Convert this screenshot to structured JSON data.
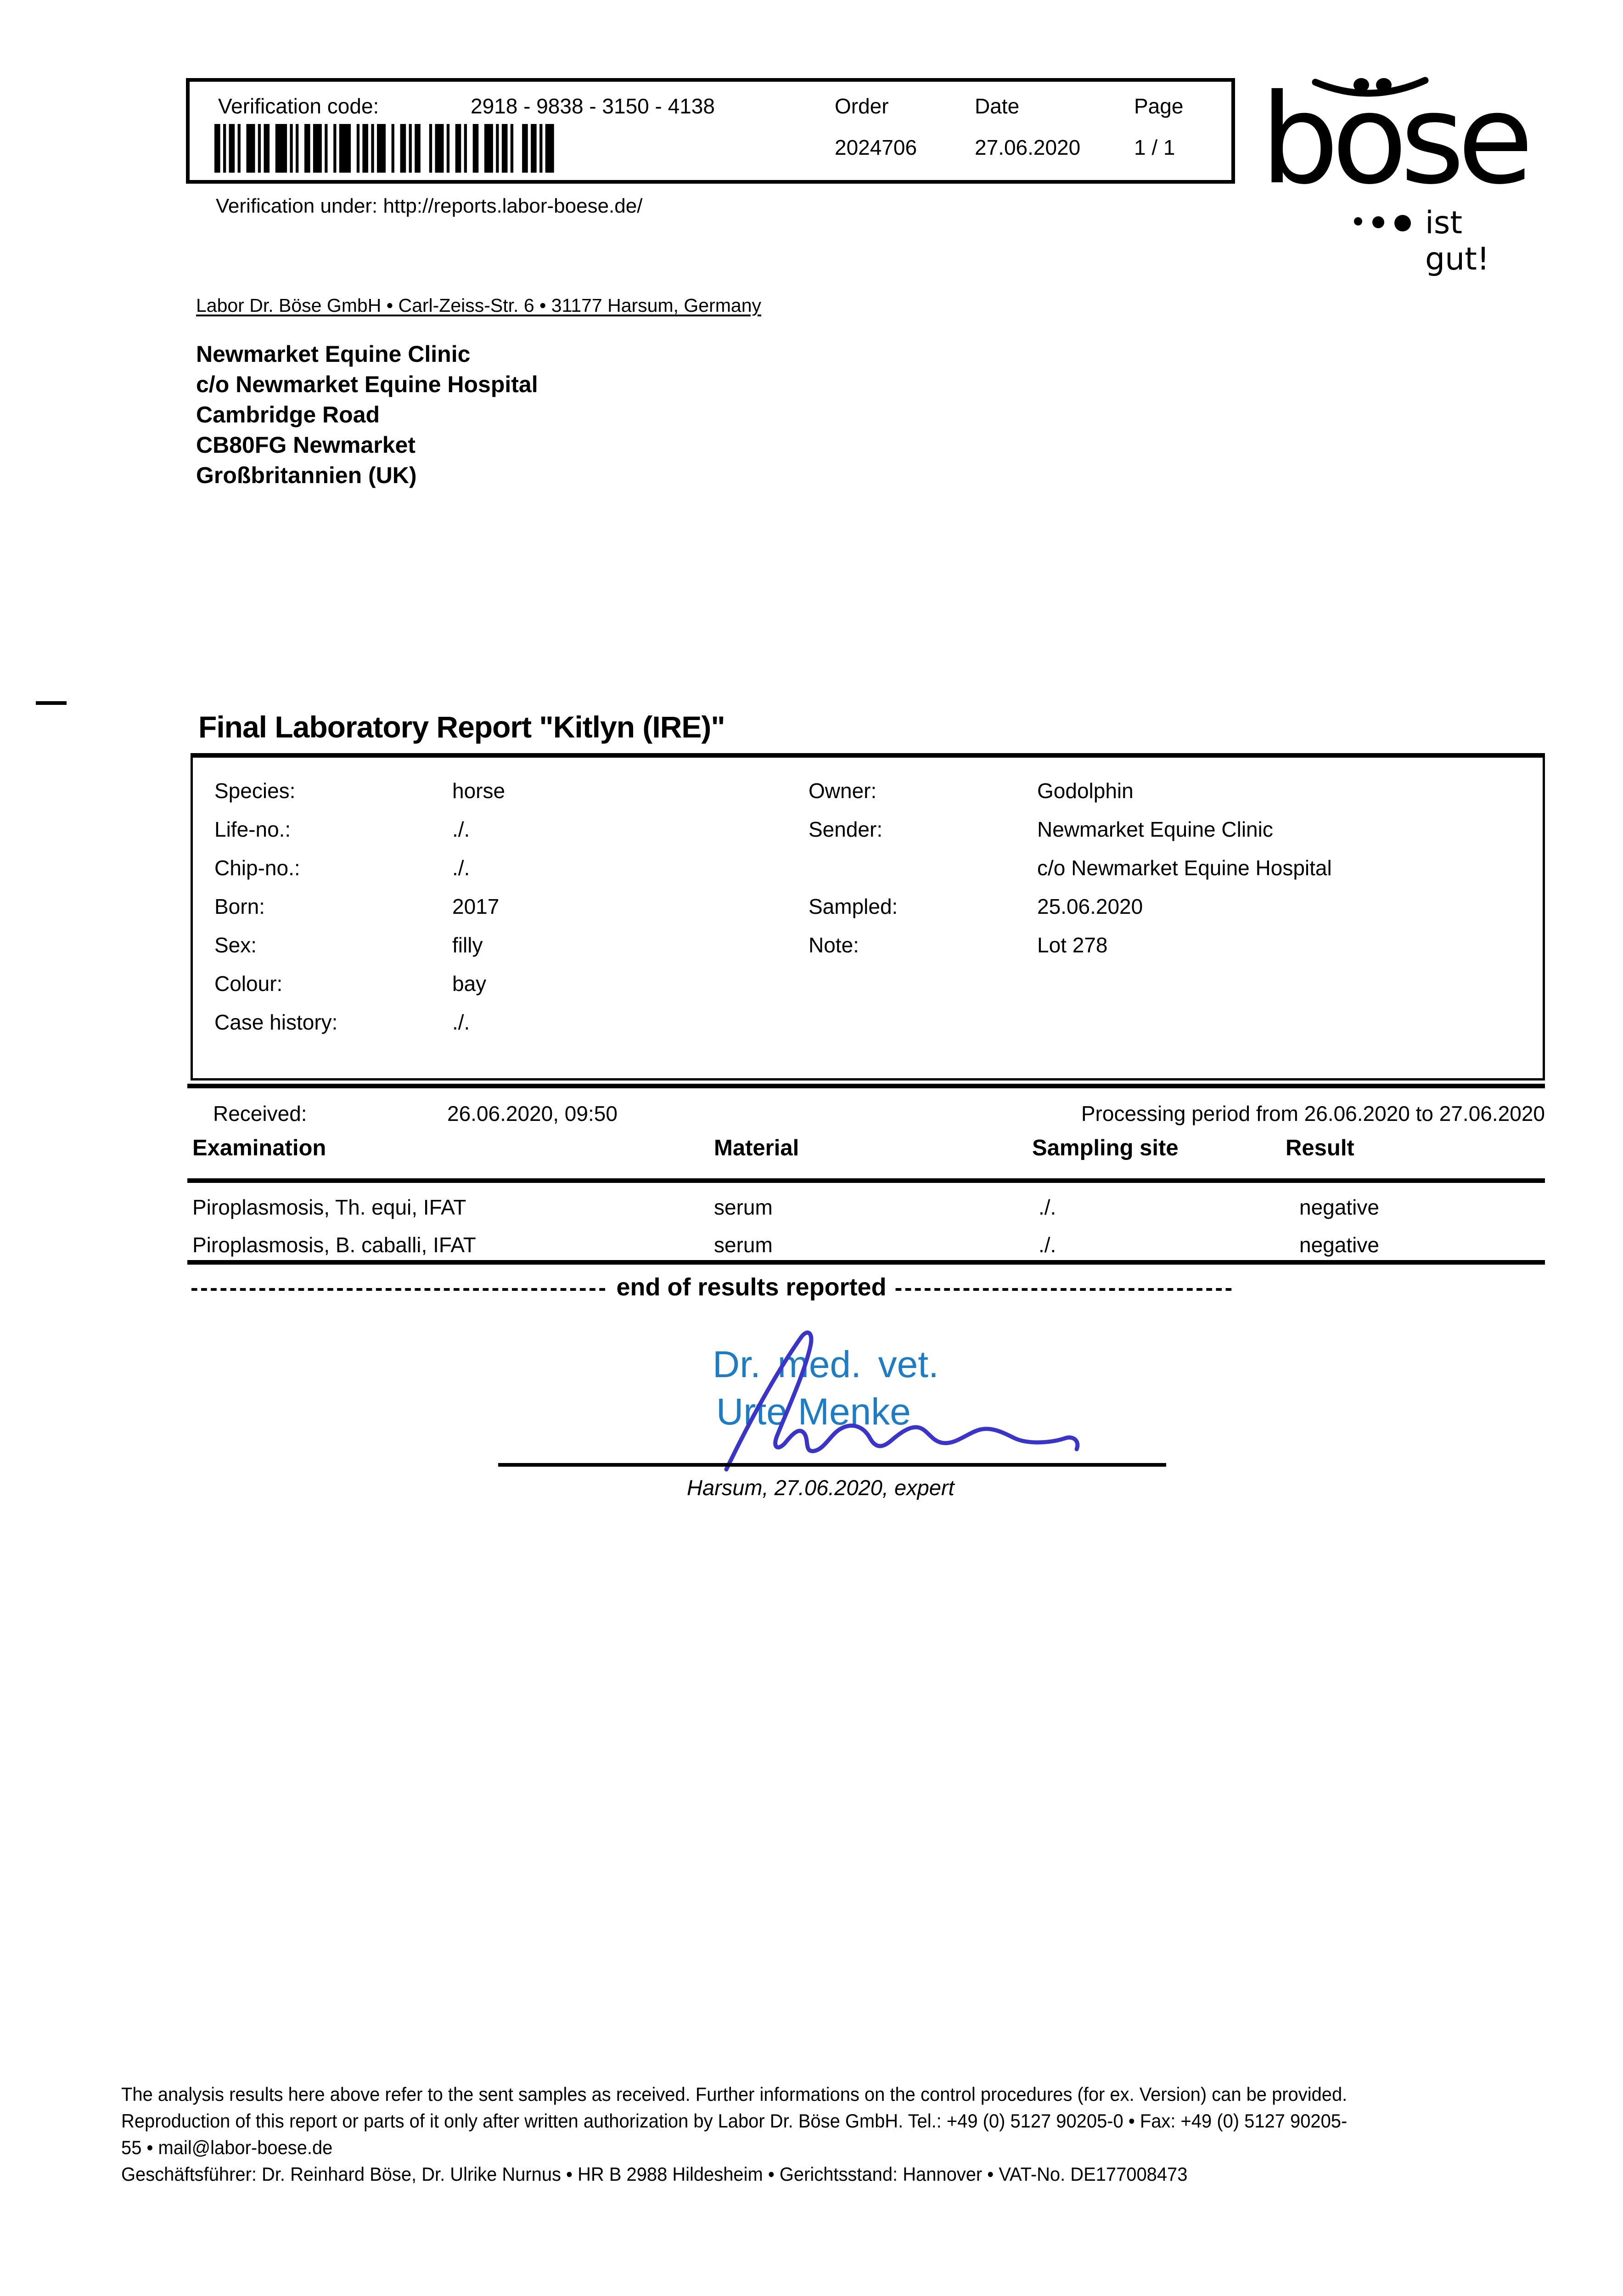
{
  "colors": {
    "text": "#000000",
    "signature_text_blue": "#1d7cc4",
    "signature_ink_blue": "#3a35c8"
  },
  "verification": {
    "code_label": "Verification code:",
    "code_value": "2918 - 9838 - 3150 - 4138",
    "order_label": "Order",
    "order_value": "2024706",
    "date_label": "Date",
    "date_value": "27.06.2020",
    "page_label": "Page",
    "page_value": "1 / 1",
    "barcode_icon": "code128-barcode",
    "under_text": "Verification under: http://reports.labor-boese.de/"
  },
  "logo": {
    "word": "bose",
    "word_display": "böse",
    "smile_icon": "smile-umlaut-icon",
    "tagline_dots_icon": "three-dots-icon",
    "tagline": "ist gut!"
  },
  "addressee": {
    "sender_line": "Labor Dr. Böse GmbH • Carl-Zeiss-Str. 6 • 31177 Harsum, Germany",
    "lines": [
      "Newmarket Equine Clinic",
      "c/o Newmarket Equine Hospital",
      "Cambridge Road",
      "CB80FG Newmarket",
      "Großbritannien (UK)"
    ]
  },
  "report": {
    "title": "Final Laboratory Report \"Kitlyn (IRE)\"",
    "info_left": [
      {
        "label": "Species:",
        "value": "horse"
      },
      {
        "label": "Life-no.:",
        "value": "./."
      },
      {
        "label": "Chip-no.:",
        "value": "./."
      },
      {
        "label": "Born:",
        "value": "2017"
      },
      {
        "label": "Sex:",
        "value": "filly"
      },
      {
        "label": "Colour:",
        "value": "bay"
      },
      {
        "label": "Case history:",
        "value": "./."
      }
    ],
    "info_right": [
      {
        "label": "Owner:",
        "value": "Godolphin"
      },
      {
        "label": "Sender:",
        "value": "Newmarket Equine Clinic"
      },
      {
        "label": "",
        "value": "c/o Newmarket Equine Hospital"
      },
      {
        "label": "Sampled:",
        "value": "25.06.2020"
      },
      {
        "label": "Note:",
        "value": "Lot 278"
      }
    ],
    "received_label": "Received:",
    "received_value": "26.06.2020, 09:50",
    "processing_period": "Processing period from 26.06.2020 to 27.06.2020",
    "results": {
      "headers": [
        "Examination",
        "Material",
        "Sampling site",
        "Result"
      ],
      "rows": [
        [
          "Piroplasmosis, Th. equi, IFAT",
          "serum",
          "./.",
          "negative"
        ],
        [
          "Piroplasmosis, B. caballi, IFAT",
          "serum",
          "./.",
          "negative"
        ]
      ]
    },
    "end_line": {
      "left_dashes": "-------------------------------------------",
      "text": "end of results reported",
      "right_dashes": "-----------------------------------"
    }
  },
  "signature": {
    "title": "Dr. med. vet.",
    "name": "Urte Menke",
    "ink_icon": "handwritten-signature",
    "place_date": "Harsum, 27.06.2020, expert"
  },
  "footer": {
    "lines": [
      "The analysis results here above refer to the sent samples as received. Further informations on the control procedures (for ex. Version) can be provided.",
      "Reproduction of this report or parts of it only after written authorization by Labor Dr. Böse GmbH. Tel.: +49 (0) 5127 90205-0 • Fax: +49 (0) 5127 90205-",
      "55 • mail@labor-boese.de",
      "Geschäftsführer: Dr. Reinhard Böse, Dr. Ulrike Nurnus • HR B 2988 Hildesheim • Gerichtsstand: Hannover • VAT-No. DE177008473"
    ]
  }
}
